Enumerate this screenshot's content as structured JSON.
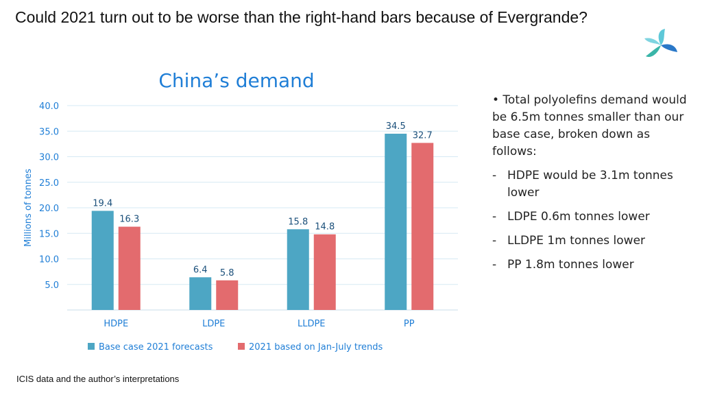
{
  "slide_title": "Could 2021 turn out to be worse than the right-hand bars because of Evergrande?",
  "source": "ICIS data and the author’s interpretations",
  "bullets": {
    "main": "• Total polyolefins demand would be 6.5m tonnes smaller than our base case, broken down as follows:",
    "subs": [
      "HDPE would be 3.1m tonnes lower",
      "LDPE 0.6m tonnes lower",
      "LLDPE 1m tonnes lower",
      "PP 1.8m tonnes lower"
    ],
    "dash": "-"
  },
  "colors": {
    "series1": "#4da6c4",
    "series2": "#e36b6e",
    "axis_text": "#1f7ed6",
    "grid": "#d6e9f4"
  },
  "chart_data": {
    "type": "bar",
    "title": "China’s demand",
    "ylabel": "Millions of tonnes",
    "xlabel": "",
    "categories": [
      "HDPE",
      "LDPE",
      "LLDPE",
      "PP"
    ],
    "series": [
      {
        "name": "Base case 2021 forecasts",
        "values": [
          19.4,
          6.4,
          15.8,
          34.5
        ],
        "labels": [
          "19.4",
          "6.4",
          "15.8",
          "34.5"
        ]
      },
      {
        "name": "2021 based on Jan-July trends",
        "values": [
          16.3,
          5.8,
          14.8,
          32.7
        ],
        "labels": [
          "16.3",
          "5.8",
          "14.8",
          "32.7"
        ]
      }
    ],
    "ylim": [
      0,
      40
    ],
    "yticks": [
      "5.0",
      "10.0",
      "15.0",
      "20.0",
      "25.0",
      "30.0",
      "35.0",
      "40.0"
    ],
    "ytick_values": [
      5,
      10,
      15,
      20,
      25,
      30,
      35,
      40
    ],
    "grid": true,
    "legend_position": "bottom"
  }
}
